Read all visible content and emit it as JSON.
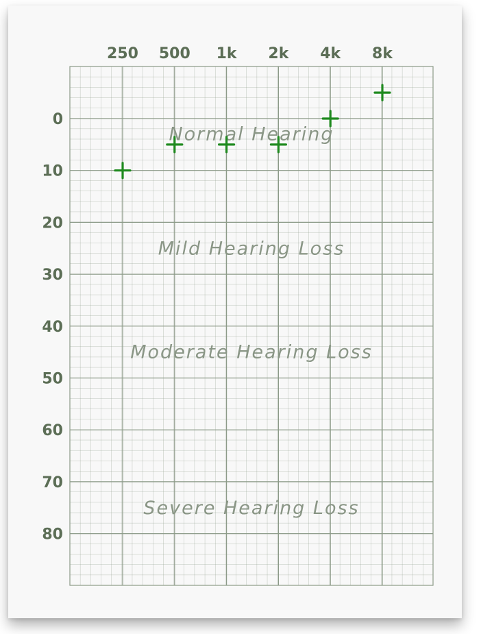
{
  "chart_data": {
    "type": "scatter",
    "title": "",
    "xlabel": "",
    "ylabel": "",
    "x_ticks": [
      "250",
      "500",
      "1k",
      "2k",
      "4k",
      "8k"
    ],
    "y_ticks": [
      "0",
      "10",
      "20",
      "30",
      "40",
      "50",
      "60",
      "70",
      "80"
    ],
    "ylim": [
      -10,
      90
    ],
    "y_inverted": true,
    "grid": true,
    "marker": "+",
    "marker_color": "#1f8a1f",
    "grid_color": "#8c9a88",
    "series": [
      {
        "x": [
          "250",
          "500",
          "1k",
          "2k",
          "4k",
          "8k"
        ],
        "values": [
          10,
          5,
          5,
          5,
          0,
          -5
        ]
      }
    ],
    "annotations": [
      {
        "text": "Normal Hearing",
        "y": 3
      },
      {
        "text": "Mild Hearing Loss",
        "y": 25
      },
      {
        "text": "Moderate Hearing Loss",
        "y": 45
      },
      {
        "text": "Severe Hearing Loss",
        "y": 75
      }
    ]
  }
}
